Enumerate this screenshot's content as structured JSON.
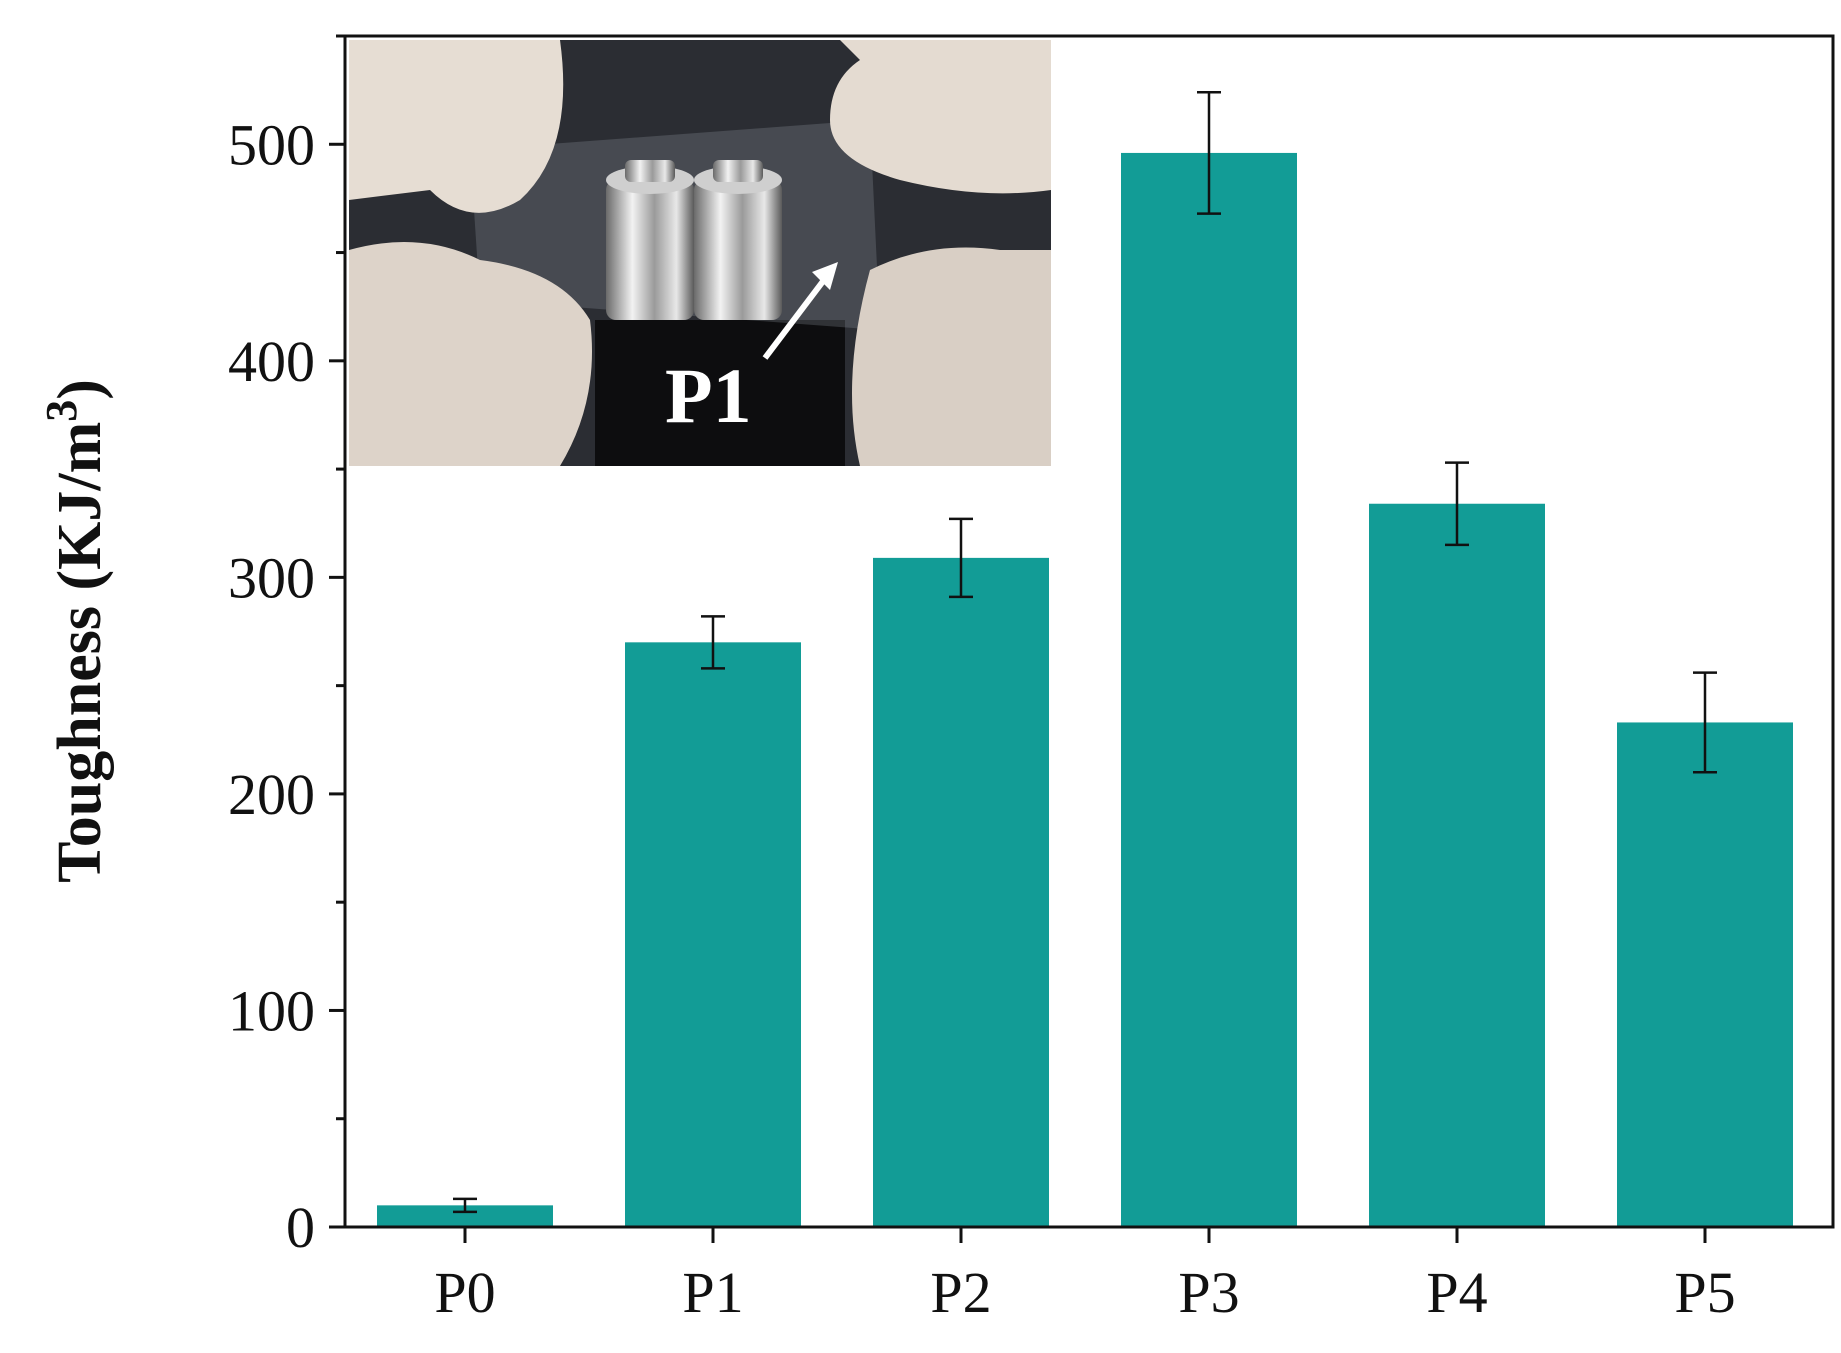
{
  "chart_data": {
    "type": "bar",
    "categories": [
      "P0",
      "P1",
      "P2",
      "P3",
      "P4",
      "P5"
    ],
    "values": [
      10,
      270,
      309,
      496,
      334,
      233
    ],
    "errors": [
      3,
      12,
      18,
      28,
      19,
      23
    ],
    "ylabel": "Toughness (KJ/m",
    "ylabel_superscript": "3",
    "ylabel_suffix": ")",
    "ylim": [
      0,
      550
    ],
    "yticks": [
      0,
      100,
      200,
      300,
      400,
      500
    ],
    "y_minor_step": 50,
    "grid": false,
    "bar_color": "#129c96",
    "inset": {
      "type": "photo",
      "label": "P1",
      "subject": "gloved hands stretching transparent film holding metal weights"
    }
  }
}
